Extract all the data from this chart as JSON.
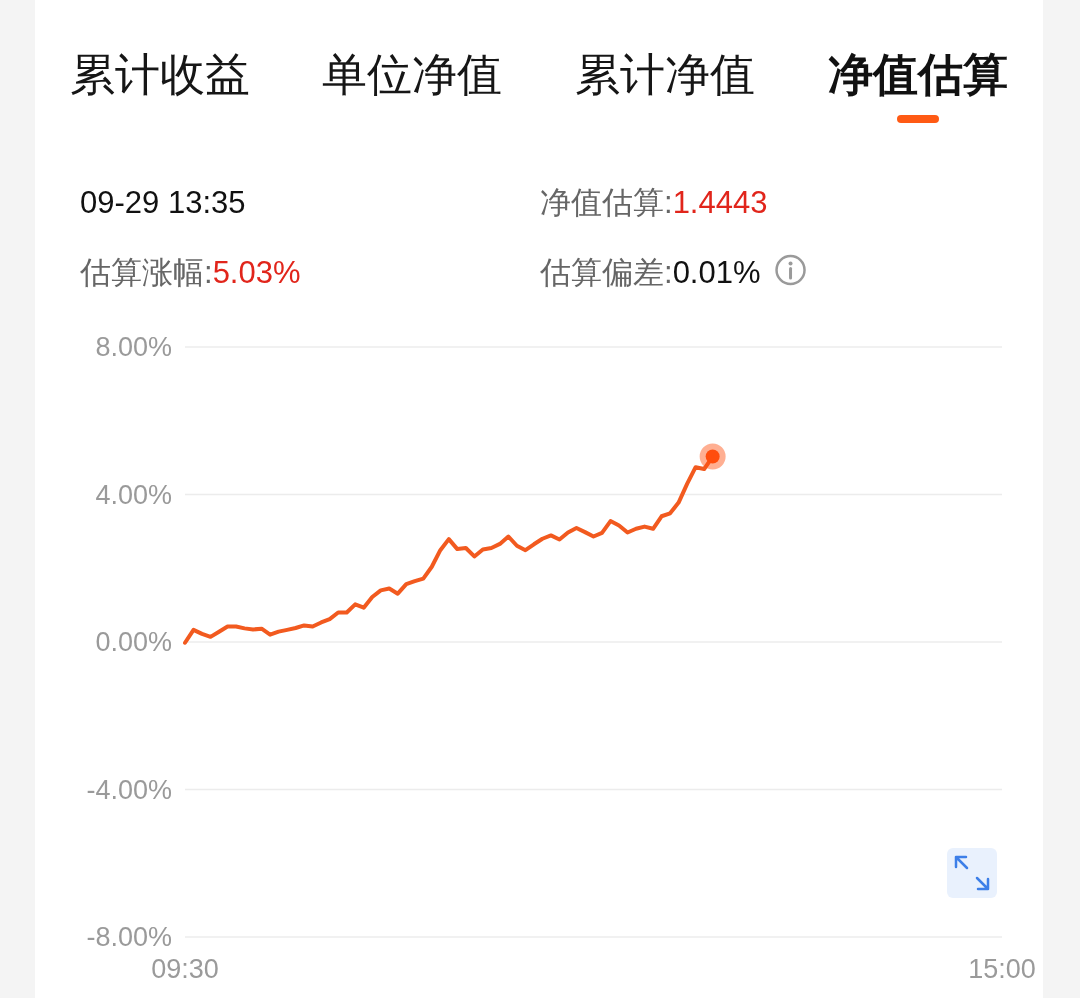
{
  "chart_data": {
    "type": "line",
    "annotations": [
      "累计收益",
      "单位净值",
      "累计净值",
      "净值估算",
      "09-29 13:35",
      "净值估算:",
      "1.4443",
      "估算涨幅:",
      "5.03%",
      "估算偏差:",
      "0.01%"
    ],
    "categories": [
      "09:30",
      null,
      null,
      null,
      null,
      null,
      null,
      null,
      null,
      null,
      null,
      null,
      null,
      null,
      null,
      null,
      null,
      null,
      null,
      null,
      null,
      null,
      null,
      null,
      null,
      null,
      null,
      null,
      null,
      null,
      null,
      null,
      null,
      null,
      null,
      null,
      null,
      null,
      null,
      null,
      null,
      null,
      null,
      null,
      null,
      null,
      null,
      null,
      null,
      null,
      null,
      null,
      null,
      null,
      null,
      null,
      null,
      null,
      null,
      null,
      null,
      null,
      null,
      null,
      null,
      null,
      null,
      null,
      null,
      null,
      null,
      null,
      null,
      null,
      null,
      null,
      null,
      null,
      null,
      null,
      null,
      null,
      null,
      null,
      null,
      null,
      null,
      null,
      null,
      null,
      null,
      null,
      null,
      null,
      null,
      null,
      "15:00"
    ],
    "series": [
      {
        "color": "#f25a1f",
        "values": [
          -0.02,
          0.33,
          0.22,
          0.14,
          0.28,
          0.42,
          0.42,
          0.37,
          0.34,
          0.36,
          0.2,
          0.28,
          0.33,
          0.38,
          0.45,
          0.42,
          0.53,
          0.62,
          0.8,
          0.8,
          1.02,
          0.93,
          1.22,
          1.4,
          1.45,
          1.31,
          1.57,
          1.65,
          1.72,
          2.04,
          2.49,
          2.79,
          2.52,
          2.55,
          2.32,
          2.51,
          2.55,
          2.66,
          2.86,
          2.61,
          2.49,
          2.65,
          2.8,
          2.89,
          2.78,
          2.97,
          3.09,
          2.98,
          2.86,
          2.96,
          3.28,
          3.16,
          2.97,
          3.07,
          3.13,
          3.07,
          3.41,
          3.49,
          3.78,
          4.29,
          4.74,
          4.69,
          5.03,
          null,
          null,
          null,
          null,
          null,
          null,
          null,
          null,
          null,
          null,
          null,
          null,
          null,
          null,
          null,
          null,
          null,
          null,
          null,
          null,
          null,
          null,
          null,
          null,
          null,
          null,
          null,
          null,
          null,
          null,
          null,
          null,
          null,
          null
        ]
      },
      {
        "type": "scatter",
        "color": "#ff4d0d",
        "values": [
          null,
          null,
          null,
          null,
          null,
          null,
          null,
          null,
          null,
          null,
          null,
          null,
          null,
          null,
          null,
          null,
          null,
          null,
          null,
          null,
          null,
          null,
          null,
          null,
          null,
          null,
          null,
          null,
          null,
          null,
          null,
          null,
          null,
          null,
          null,
          null,
          null,
          null,
          null,
          null,
          null,
          null,
          null,
          null,
          null,
          null,
          null,
          null,
          null,
          null,
          null,
          null,
          null,
          null,
          null,
          null,
          null,
          null,
          null,
          null,
          null,
          null,
          5.03,
          null,
          null,
          null,
          null,
          null,
          null,
          null,
          null,
          null,
          null,
          null,
          null,
          null,
          null,
          null,
          null,
          null,
          null,
          null,
          null,
          null,
          null,
          null,
          null,
          null,
          null,
          null,
          null,
          null,
          null,
          null,
          null,
          null,
          null
        ]
      }
    ],
    "ylim": [
      -8,
      8
    ],
    "yticks": [
      {
        "value": -8,
        "label": "-8.00%"
      },
      {
        "value": -4,
        "label": "-4.00%"
      },
      {
        "value": 0,
        "label": "0.00%"
      },
      {
        "value": 4,
        "label": "4.00%"
      },
      {
        "value": 8,
        "label": "8.00%"
      }
    ],
    "grid": "y"
  }
}
